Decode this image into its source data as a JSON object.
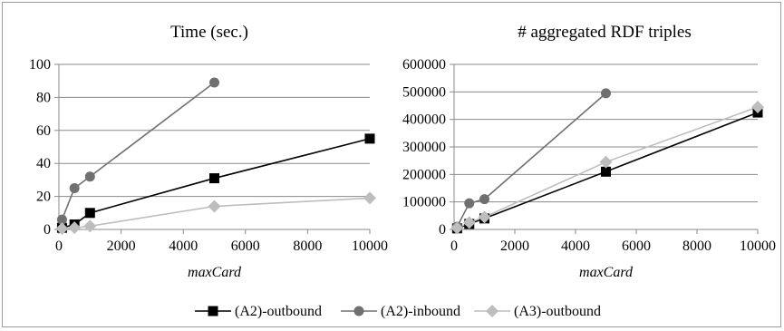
{
  "chart_data": [
    {
      "type": "line",
      "title": "Time (sec.)",
      "xlabel": "maxCard",
      "ylabel": "",
      "xlim": [
        0,
        10000
      ],
      "ylim": [
        0,
        100
      ],
      "x_ticks": [
        0,
        2000,
        4000,
        6000,
        8000,
        10000
      ],
      "y_ticks": [
        0,
        20,
        40,
        60,
        80,
        100
      ],
      "grid": "horizontal",
      "series": [
        {
          "name": "(A2)-outbound",
          "color": "#000000",
          "marker": "square",
          "x": [
            100,
            500,
            1000,
            5000,
            10000
          ],
          "y": [
            1,
            3,
            10,
            31,
            55
          ]
        },
        {
          "name": "(A2)-inbound",
          "color": "#707070",
          "marker": "circle",
          "x": [
            100,
            500,
            1000,
            5000
          ],
          "y": [
            6,
            25,
            32,
            89
          ]
        },
        {
          "name": "(A3)-outbound",
          "color": "#bdbdbd",
          "marker": "diamond",
          "x": [
            100,
            500,
            1000,
            5000,
            10000
          ],
          "y": [
            0.5,
            1,
            2,
            14,
            19
          ]
        }
      ]
    },
    {
      "type": "line",
      "title": "# aggregated RDF triples",
      "xlabel": "maxCard",
      "ylabel": "",
      "xlim": [
        0,
        10000
      ],
      "ylim": [
        0,
        600000
      ],
      "x_ticks": [
        0,
        2000,
        4000,
        6000,
        8000,
        10000
      ],
      "y_ticks": [
        0,
        100000,
        200000,
        300000,
        400000,
        500000,
        600000
      ],
      "grid": "horizontal",
      "series": [
        {
          "name": "(A2)-outbound",
          "color": "#000000",
          "marker": "square",
          "x": [
            100,
            500,
            1000,
            5000,
            10000
          ],
          "y": [
            4000,
            20000,
            40000,
            210000,
            425000
          ]
        },
        {
          "name": "(A2)-inbound",
          "color": "#707070",
          "marker": "circle",
          "x": [
            100,
            500,
            1000,
            5000
          ],
          "y": [
            10000,
            95000,
            110000,
            495000
          ]
        },
        {
          "name": "(A3)-outbound",
          "color": "#bdbdbd",
          "marker": "diamond",
          "x": [
            100,
            500,
            1000,
            5000,
            10000
          ],
          "y": [
            5000,
            25000,
            45000,
            245000,
            445000
          ]
        }
      ]
    }
  ],
  "legend": {
    "placement": "bottom",
    "items": [
      {
        "label": "(A2)-outbound",
        "color": "#000000",
        "marker": "square"
      },
      {
        "label": "(A2)-inbound",
        "color": "#707070",
        "marker": "circle"
      },
      {
        "label": "(A3)-outbound",
        "color": "#bdbdbd",
        "marker": "diamond"
      }
    ]
  }
}
